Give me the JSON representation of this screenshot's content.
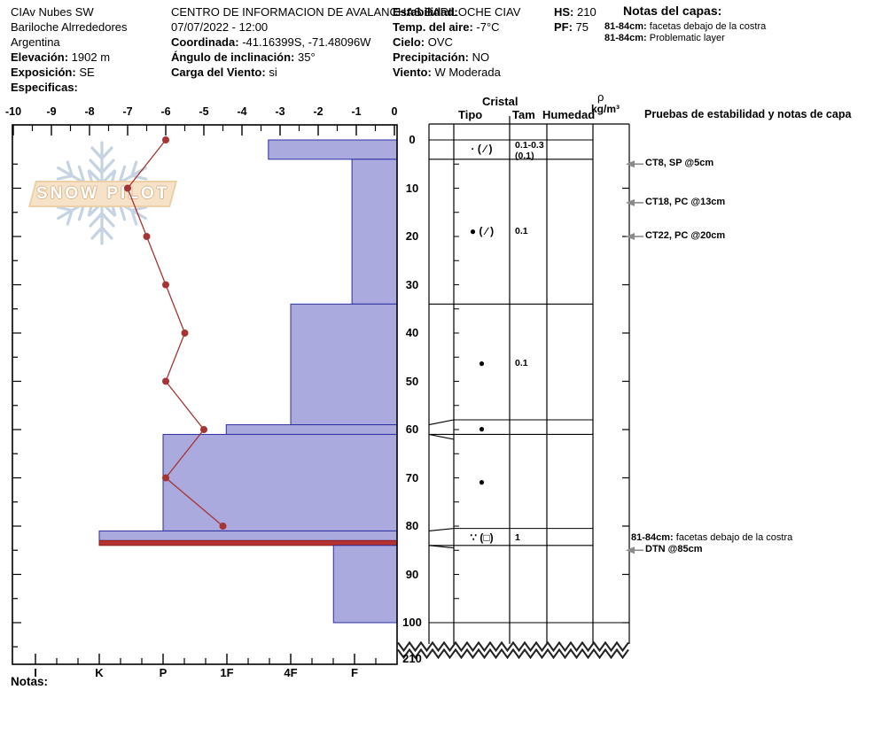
{
  "header": {
    "left": {
      "site": "CIAv Nubes SW",
      "region": "Bariloche Alrrededores",
      "country": "Argentina",
      "elevation_label": "Elevación:",
      "elevation_value": "1902 m",
      "aspect_label": "Exposición:",
      "aspect_value": "SE",
      "specifics_label": "Especificas:"
    },
    "center": {
      "title": "CENTRO DE INFORMACION DE AVALANCHAS BARILOCHE CIAV",
      "datetime": "07/07/2022 - 12:00",
      "coord_label": "Coordinada:",
      "coord_value": "-41.16399S, -71.48096W",
      "slope_label": "Ángulo de inclinación:",
      "slope_value": "35°",
      "windload_label": "Carga del Viento:",
      "windload_value": "si"
    },
    "right": {
      "stability_label": "Estabilidad:",
      "airtemp_label": "Temp. del aire:",
      "airtemp_value": "-7°C",
      "sky_label": "Cielo:",
      "sky_value": "OVC",
      "precip_label": "Precipitación:",
      "precip_value": "NO",
      "wind_label": "Viento:",
      "wind_value": "W Moderada"
    },
    "hs_label": "HS:",
    "hs_value": "210",
    "pf_label": "PF:",
    "pf_value": "75",
    "layer_notes_title": "Notas del capas:",
    "layer_notes": [
      {
        "range": "81-84cm:",
        "text": "facetas debajo de la costra"
      },
      {
        "range": "81-84cm:",
        "text": "Problematic layer"
      }
    ]
  },
  "watermark": {
    "text": "SNOW PILOT"
  },
  "table": {
    "cristal": "Cristal",
    "tipo": "Tipo",
    "tam": "Tam",
    "humedad": "Humedad",
    "rho": "ρ",
    "rho_units": "kg/m³",
    "tests_header": "Pruebas de estabilidad y notas de capa"
  },
  "notes_label": "Notas:",
  "chart_data": {
    "type": "snow-profile",
    "title": "Snow pit profile with temperature, hardness, grain table and stability tests",
    "temp_axis": {
      "unit": "°C",
      "ticks": [
        -10,
        -9,
        -8,
        -7,
        -6,
        -5,
        -4,
        -3,
        -2,
        -1,
        0
      ],
      "range": [
        -10,
        0
      ]
    },
    "hardness_axis": {
      "labels": [
        "I",
        "K",
        "P",
        "1F",
        "4F",
        "F"
      ]
    },
    "depth_axis": {
      "unit": "cm",
      "ticks": [
        0,
        10,
        20,
        30,
        40,
        50,
        60,
        70,
        80,
        90,
        100
      ],
      "bottom_label": "210",
      "total_hs_cm": 210
    },
    "temperature_profile": [
      {
        "depth_cm": 0,
        "temp_c": -6.0
      },
      {
        "depth_cm": 10,
        "temp_c": -7.0
      },
      {
        "depth_cm": 20,
        "temp_c": -6.5
      },
      {
        "depth_cm": 30,
        "temp_c": -6.0
      },
      {
        "depth_cm": 40,
        "temp_c": -5.5
      },
      {
        "depth_cm": 50,
        "temp_c": -6.0
      },
      {
        "depth_cm": 60,
        "temp_c": -5.0
      },
      {
        "depth_cm": 70,
        "temp_c": -6.0
      },
      {
        "depth_cm": 80,
        "temp_c": -4.5
      }
    ],
    "layers": [
      {
        "top_cm": 0,
        "bottom_cm": 4,
        "hardness": "4F+",
        "hardness_code": 4.65,
        "grain_type": "· ( ∕ )",
        "grain_size": "0.1-0.3",
        "grain_size2": "(0.1)"
      },
      {
        "top_cm": 4,
        "bottom_cm": 34,
        "hardness": "F",
        "hardness_code": 5.96,
        "grain_type": "● ( ∕ )",
        "grain_size": "0.1"
      },
      {
        "top_cm": 34,
        "bottom_cm": 59,
        "hardness": "4F",
        "hardness_code": 5.0,
        "grain_type": "●",
        "grain_size": "0.1"
      },
      {
        "top_cm": 59,
        "bottom_cm": 61,
        "hardness": "1F",
        "hardness_code": 3.99,
        "grain_type": "●",
        "grain_size": ""
      },
      {
        "top_cm": 61,
        "bottom_cm": 81,
        "hardness": "P",
        "hardness_code": 3.0,
        "grain_type": "●",
        "grain_size": ""
      },
      {
        "top_cm": 81,
        "bottom_cm": 83,
        "hardness": "K",
        "hardness_code": 2.0,
        "grain_type": "∵ (□)",
        "grain_size": "1"
      },
      {
        "top_cm": 83,
        "bottom_cm": 84,
        "hardness": "K",
        "hardness_code": 2.0,
        "problematic": true
      },
      {
        "top_cm": 84,
        "bottom_cm": 100,
        "hardness": "F+",
        "hardness_code": 5.67
      }
    ],
    "tests": [
      {
        "label": "CT8, SP @5cm",
        "depth_cm": 5
      },
      {
        "label": "CT18, PC @13cm",
        "depth_cm": 13
      },
      {
        "label": "CT22, PC @20cm",
        "depth_cm": 20
      },
      {
        "label": "DTN @85cm",
        "depth_cm": 85
      }
    ],
    "chart_layer_note": {
      "range": "81-84cm:",
      "text": "facetas debajo de la costra",
      "depth_cm": 83
    },
    "colors": {
      "layer_fill": "#aaaade",
      "layer_border": "#2e2ea0",
      "problem_fill": "#b43232",
      "problem_border": "#8f1d1d",
      "temp_line": "#a53434",
      "arrow_gray": "#8a8a8a",
      "watermark_banner": "#f6e2c8",
      "watermark_snowflake": "#c5d3e2"
    }
  }
}
